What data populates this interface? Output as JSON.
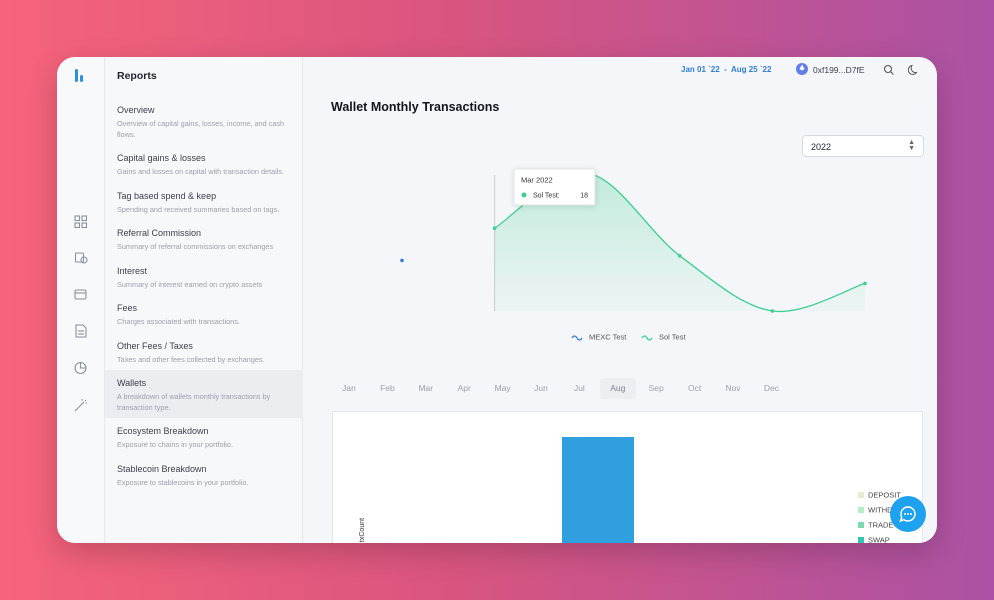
{
  "header": {
    "date_range": "Jan 01 `22  -  Aug 25 `22",
    "wallet": "0xf199...D7fE"
  },
  "sidebar": {
    "title": "Reports",
    "selected": 7,
    "items": [
      {
        "title": "Overview",
        "description": "Overview of capital gains, losses, income, and cash flows."
      },
      {
        "title": "Capital gains & losses",
        "description": "Gains and losses on capital with transaction details."
      },
      {
        "title": "Tag based spend & keep",
        "description": "Spending and received summaries based on tags."
      },
      {
        "title": "Referral Commission",
        "description": "Summary of referral commissions on exchanges"
      },
      {
        "title": "Interest",
        "description": "Summary of interest earned on crypto assets"
      },
      {
        "title": "Fees",
        "description": "Charges associated with transactions."
      },
      {
        "title": "Other Fees / Taxes",
        "description": "Taxes and other fees collected by exchanges."
      },
      {
        "title": "Wallets",
        "description": "A breakdown of wallets monthly transactions by transaction type."
      },
      {
        "title": "Ecosystem Breakdown",
        "description": "Exposure to chains in your portfolio."
      },
      {
        "title": "Stablecoin Breakdown",
        "description": "Exposure to stablecoins in your portfolio."
      }
    ]
  },
  "main": {
    "title": "Wallet Monthly Transactions",
    "year": "2022",
    "months": [
      "Jan",
      "Feb",
      "Mar",
      "Apr",
      "May",
      "Jun",
      "Jul",
      "Aug",
      "Sep",
      "Oct",
      "Nov",
      "Dec"
    ],
    "selected_month": 7,
    "chart_data": [
      {
        "type": "line",
        "categories": [
          null,
          "Mar 2022",
          null,
          null,
          null,
          null
        ],
        "ylim": [
          0,
          30
        ],
        "series": [
          {
            "name": "MEXC Test",
            "color": "#3b7ddd",
            "values": [
              11,
              null,
              null,
              null,
              null,
              null
            ]
          },
          {
            "name": "Sol Test",
            "color": "#3ccf91",
            "values": [
              null,
              18,
              30,
              12,
              0,
              6
            ]
          }
        ],
        "tooltip": {
          "index": 1,
          "series": 1,
          "label": "Sol Test:"
        }
      },
      {
        "type": "bar",
        "y_label": "txCount",
        "bar_color": "#2f9fe0",
        "series": [
          {
            "name": "DEPOSIT",
            "color": "#e6edcc"
          },
          {
            "name": "WITHDRAW",
            "color": "#b5eec4"
          },
          {
            "name": "TRADE",
            "color": "#7cdab0"
          },
          {
            "name": "SWAP",
            "color": "#35c3b5"
          }
        ]
      }
    ]
  }
}
